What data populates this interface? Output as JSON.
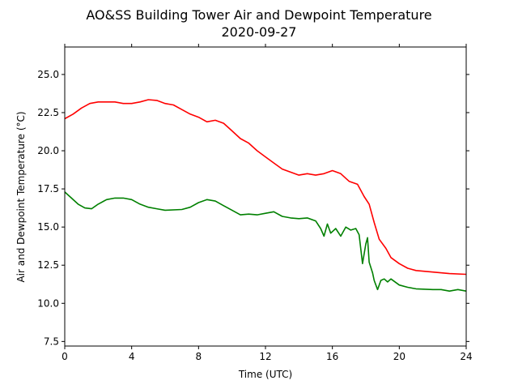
{
  "chart_data": {
    "type": "line",
    "title": "AO&SS Building Tower Air and Dewpoint Temperature",
    "subtitle": "2020-09-27",
    "xlabel": "Time (UTC)",
    "ylabel": "Air and Dewpoint Temperature (°C)",
    "xlim": [
      0,
      24
    ],
    "ylim": [
      7.2,
      26.8
    ],
    "xticks": [
      0,
      4,
      8,
      12,
      16,
      20,
      24
    ],
    "yticks": [
      7.5,
      10.0,
      12.5,
      15.0,
      17.5,
      20.0,
      22.5,
      25.0
    ],
    "ytick_labels": [
      "7.5",
      "10.0",
      "12.5",
      "15.0",
      "17.5",
      "20.0",
      "22.5",
      "25.0"
    ],
    "grid": false,
    "series": [
      {
        "color": "#ff0000",
        "points": [
          [
            0,
            22.1
          ],
          [
            0.5,
            22.4
          ],
          [
            1,
            22.8
          ],
          [
            1.5,
            23.1
          ],
          [
            2,
            23.2
          ],
          [
            2.5,
            23.2
          ],
          [
            3,
            23.2
          ],
          [
            3.5,
            23.1
          ],
          [
            4,
            23.1
          ],
          [
            4.5,
            23.2
          ],
          [
            5,
            23.35
          ],
          [
            5.5,
            23.3
          ],
          [
            6,
            23.1
          ],
          [
            6.5,
            23.0
          ],
          [
            7,
            22.7
          ],
          [
            7.5,
            22.4
          ],
          [
            8,
            22.2
          ],
          [
            8.5,
            21.9
          ],
          [
            9,
            22.0
          ],
          [
            9.5,
            21.8
          ],
          [
            10,
            21.3
          ],
          [
            10.5,
            20.8
          ],
          [
            11,
            20.5
          ],
          [
            11.5,
            20.0
          ],
          [
            12,
            19.6
          ],
          [
            12.5,
            19.2
          ],
          [
            13,
            18.8
          ],
          [
            13.5,
            18.6
          ],
          [
            14,
            18.4
          ],
          [
            14.5,
            18.5
          ],
          [
            15,
            18.4
          ],
          [
            15.5,
            18.5
          ],
          [
            16,
            18.7
          ],
          [
            16.5,
            18.5
          ],
          [
            17,
            18.0
          ],
          [
            17.5,
            17.8
          ],
          [
            17.9,
            17.0
          ],
          [
            18.2,
            16.5
          ],
          [
            18.5,
            15.3
          ],
          [
            18.8,
            14.2
          ],
          [
            19.2,
            13.6
          ],
          [
            19.5,
            13.0
          ],
          [
            20,
            12.6
          ],
          [
            20.5,
            12.3
          ],
          [
            21,
            12.15
          ],
          [
            22,
            12.05
          ],
          [
            23,
            11.95
          ],
          [
            24,
            11.9
          ]
        ]
      },
      {
        "color": "#008000",
        "points": [
          [
            0,
            17.3
          ],
          [
            0.4,
            16.9
          ],
          [
            0.8,
            16.5
          ],
          [
            1.2,
            16.25
          ],
          [
            1.6,
            16.2
          ],
          [
            2,
            16.5
          ],
          [
            2.5,
            16.8
          ],
          [
            3,
            16.9
          ],
          [
            3.5,
            16.9
          ],
          [
            4,
            16.8
          ],
          [
            4.5,
            16.5
          ],
          [
            5,
            16.3
          ],
          [
            5.5,
            16.2
          ],
          [
            6,
            16.1
          ],
          [
            7,
            16.15
          ],
          [
            7.5,
            16.3
          ],
          [
            8,
            16.6
          ],
          [
            8.5,
            16.8
          ],
          [
            9,
            16.7
          ],
          [
            9.5,
            16.4
          ],
          [
            10,
            16.1
          ],
          [
            10.5,
            15.8
          ],
          [
            11,
            15.85
          ],
          [
            11.5,
            15.8
          ],
          [
            12,
            15.9
          ],
          [
            12.5,
            16.0
          ],
          [
            13,
            15.7
          ],
          [
            13.5,
            15.6
          ],
          [
            14,
            15.55
          ],
          [
            14.5,
            15.6
          ],
          [
            15,
            15.4
          ],
          [
            15.3,
            14.9
          ],
          [
            15.5,
            14.4
          ],
          [
            15.7,
            15.2
          ],
          [
            15.9,
            14.6
          ],
          [
            16.2,
            14.9
          ],
          [
            16.5,
            14.4
          ],
          [
            16.8,
            15.0
          ],
          [
            17.1,
            14.8
          ],
          [
            17.4,
            14.9
          ],
          [
            17.6,
            14.5
          ],
          [
            17.8,
            12.6
          ],
          [
            18.0,
            13.9
          ],
          [
            18.1,
            14.3
          ],
          [
            18.2,
            12.7
          ],
          [
            18.4,
            12.0
          ],
          [
            18.5,
            11.5
          ],
          [
            18.7,
            10.9
          ],
          [
            18.9,
            11.5
          ],
          [
            19.1,
            11.6
          ],
          [
            19.3,
            11.4
          ],
          [
            19.5,
            11.6
          ],
          [
            20,
            11.2
          ],
          [
            20.5,
            11.05
          ],
          [
            21,
            10.95
          ],
          [
            22,
            10.9
          ],
          [
            22.5,
            10.9
          ],
          [
            23,
            10.8
          ],
          [
            23.5,
            10.9
          ],
          [
            24,
            10.8
          ]
        ]
      }
    ]
  }
}
